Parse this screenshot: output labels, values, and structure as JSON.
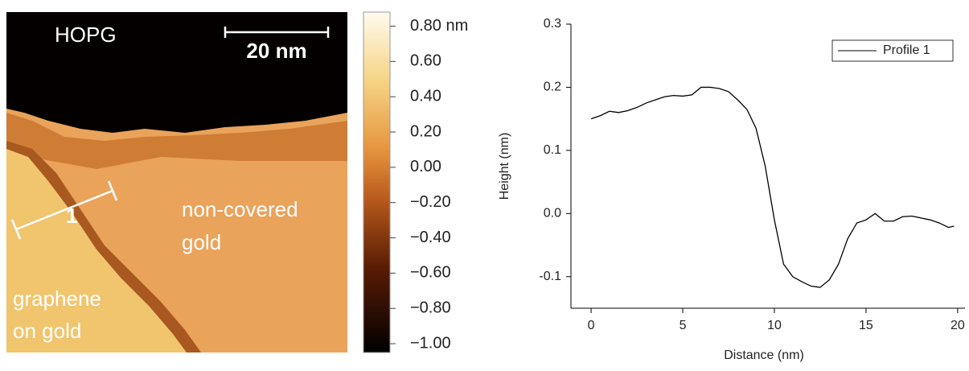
{
  "afm_image": {
    "site_label": "HOPG",
    "scale_bar": "20 nm",
    "profile_marker": "1",
    "region_right": [
      "non-covered",
      "gold"
    ],
    "region_left": [
      "graphene",
      "on gold"
    ],
    "colorbar": {
      "lim": [
        -1.05,
        0.88
      ],
      "ticks": [
        {
          "value": 0.8,
          "label": "0.80 nm"
        },
        {
          "value": 0.6,
          "label": "0.60"
        },
        {
          "value": 0.4,
          "label": "0.40"
        },
        {
          "value": 0.2,
          "label": "0.20"
        },
        {
          "value": 0,
          "label": "0.00"
        },
        {
          "value": -0.2,
          "label": "−0.20"
        },
        {
          "value": -0.4,
          "label": "−0.40"
        },
        {
          "value": -0.6,
          "label": "−0.60"
        },
        {
          "value": -0.8,
          "label": "−0.80"
        },
        {
          "value": -1.0,
          "label": "−1.00"
        }
      ]
    }
  },
  "chart_data": {
    "type": "line",
    "x_label": "Distance (nm)",
    "y_label": "Height (nm)",
    "x": [
      0,
      0.5,
      1,
      1.5,
      2,
      2.5,
      3,
      3.5,
      4,
      4.5,
      5,
      5.5,
      6,
      6.5,
      7,
      7.5,
      8,
      8.5,
      9,
      9.5,
      10,
      10.5,
      11,
      11.5,
      12,
      12.5,
      13,
      13.5,
      14,
      14.5,
      15,
      15.5,
      16,
      16.5,
      17,
      17.5,
      18,
      18.5,
      19,
      19.5,
      19.8
    ],
    "series": [
      {
        "name": "Profile 1",
        "color": "#000000",
        "values": [
          0.15,
          0.155,
          0.162,
          0.16,
          0.163,
          0.168,
          0.175,
          0.18,
          0.185,
          0.187,
          0.186,
          0.188,
          0.2,
          0.2,
          0.198,
          0.193,
          0.18,
          0.165,
          0.135,
          0.075,
          -0.01,
          -0.08,
          -0.1,
          -0.108,
          -0.115,
          -0.117,
          -0.105,
          -0.08,
          -0.04,
          -0.015,
          -0.01,
          0.0,
          -0.012,
          -0.012,
          -0.005,
          -0.004,
          -0.007,
          -0.01,
          -0.015,
          -0.022,
          -0.02
        ]
      }
    ],
    "xlim": [
      -1.1,
      20.4
    ],
    "ylim": [
      -0.15,
      0.3
    ],
    "xticks": [
      0,
      5,
      10,
      15,
      20
    ],
    "yticks": [
      0.3,
      0.2,
      0.1,
      {
        "value": 0,
        "label": "0.0"
      },
      -0.1
    ],
    "legend": "upper-right"
  }
}
